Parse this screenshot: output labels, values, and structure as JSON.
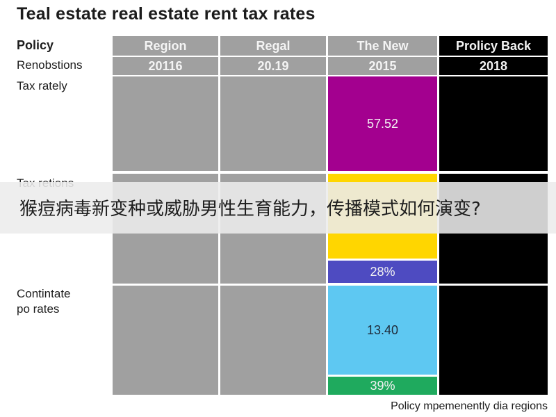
{
  "title": "Teal estate real estate rent tax rates",
  "row_labels": {
    "policy": "Policy",
    "renobstions": "Renobstions",
    "tax_rately": "Tax rately",
    "tax_retions": "Tax retions",
    "contintate_1": "Contintate",
    "contintate_2": "po rates"
  },
  "columns": [
    {
      "header": "Region",
      "sub": "20116",
      "color": "#a0a0a0"
    },
    {
      "header": "Regal",
      "sub": "20.19",
      "color": "#a0a0a0"
    },
    {
      "header": "The New",
      "sub": "2015",
      "color": "#a0a0a0"
    },
    {
      "header": "Prolicy Back",
      "sub": "2018",
      "color": "#000000"
    }
  ],
  "chart_data": {
    "type": "table",
    "title": "Teal estate real estate rent tax rates",
    "segments": [
      {
        "label": "57.52",
        "color": "#a3008f"
      },
      {
        "label": "",
        "color": "#ffd600"
      },
      {
        "label": "28%",
        "color": "#4e4bc1"
      },
      {
        "label": "13.40",
        "color": "#5ec8f2"
      },
      {
        "label": "39%",
        "color": "#1faa5e"
      }
    ]
  },
  "footer": "Policy mpemenently dia regions",
  "overlay_text": "猴痘病毒新变种或威胁男性生育能力，传播模式如何演变?"
}
